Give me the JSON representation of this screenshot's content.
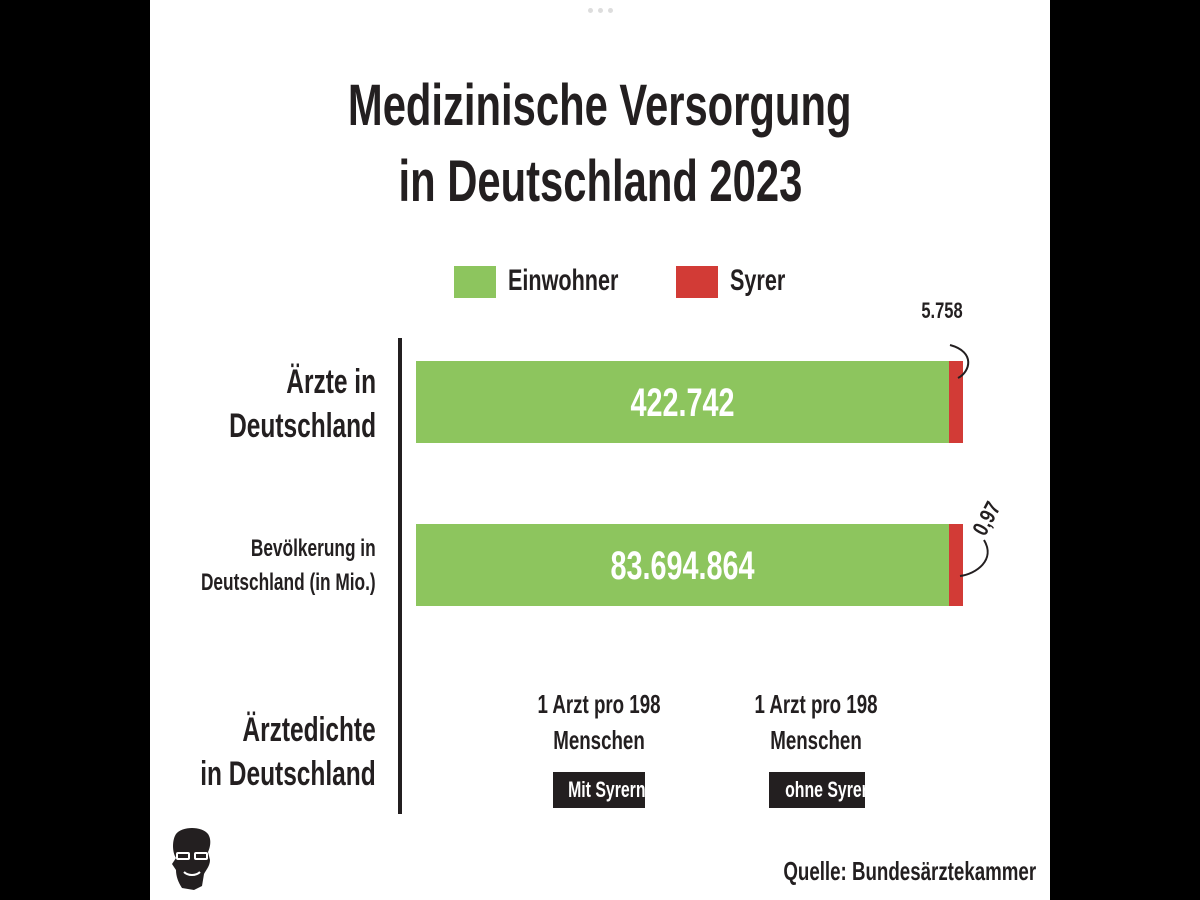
{
  "title_line1": "Medizinische Versorgung",
  "title_line2": "in Deutschland 2023",
  "legend": [
    {
      "label": "Einwohner",
      "color": "#8dc55e"
    },
    {
      "label": "Syrer",
      "color": "#d23b36"
    }
  ],
  "rows": {
    "aerzte": {
      "line1": "Ärzte in",
      "line2": "Deutschland"
    },
    "bevoelkerung": {
      "line1": "Bevölkerung in",
      "line2": "Deutschland (in Mio.)"
    },
    "dichte": {
      "line1": "Ärztedichte",
      "line2": "in Deutschland"
    }
  },
  "chart_data": {
    "type": "bar",
    "orientation": "horizontal",
    "stacked": true,
    "categories": [
      "Ärzte in Deutschland",
      "Bevölkerung in Deutschland (in Mio.)"
    ],
    "series": [
      {
        "name": "Einwohner",
        "color": "#8dc55e",
        "labels": [
          "422.742",
          "83.694.864"
        ]
      },
      {
        "name": "Syrer",
        "color": "#d23b36",
        "labels": [
          "5.758",
          "0,97"
        ]
      }
    ]
  },
  "density": [
    {
      "line1": "1 Arzt pro 198",
      "line2": "Menschen",
      "tag": "Mit Syrern"
    },
    {
      "line1": "1 Arzt pro 198",
      "line2": "Menschen",
      "tag": "ohne Syrer"
    }
  ],
  "source": "Quelle: Bundesärztekammer",
  "colors": {
    "text": "#231f20",
    "background": "#ffffff",
    "frame": "#000000"
  }
}
